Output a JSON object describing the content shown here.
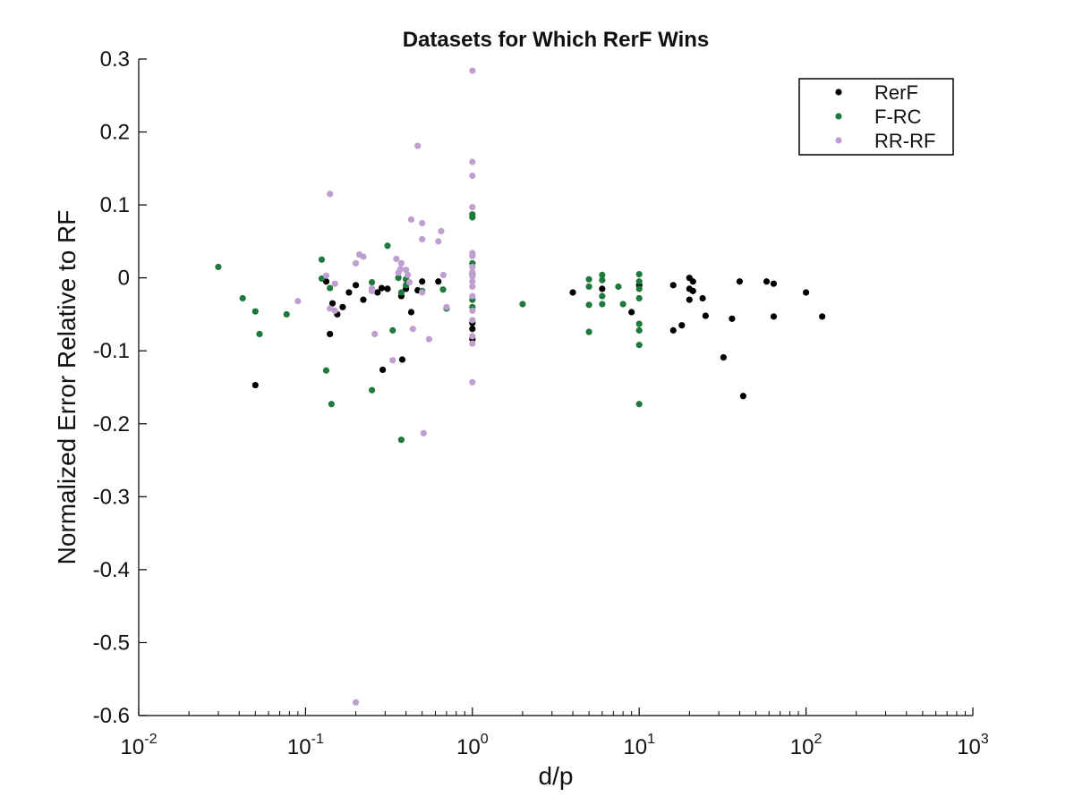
{
  "chart_data": {
    "type": "scatter",
    "title": "Datasets for Which RerF Wins",
    "xlabel": "d/p",
    "ylabel": "Normalized Error Relative to RF",
    "xscale": "log",
    "xlim": [
      0.01,
      1000
    ],
    "ylim": [
      -0.6,
      0.3
    ],
    "xticks": [
      {
        "value": 0.01,
        "base": "10",
        "exp": "-2"
      },
      {
        "value": 0.1,
        "base": "10",
        "exp": "-1"
      },
      {
        "value": 1,
        "base": "10",
        "exp": "0"
      },
      {
        "value": 10,
        "base": "10",
        "exp": "1"
      },
      {
        "value": 100,
        "base": "10",
        "exp": "2"
      },
      {
        "value": 1000,
        "base": "10",
        "exp": "3"
      }
    ],
    "yticks": [
      {
        "value": 0.3,
        "label": "0.3"
      },
      {
        "value": 0.2,
        "label": "0.2"
      },
      {
        "value": 0.1,
        "label": "0.1"
      },
      {
        "value": 0,
        "label": "0"
      },
      {
        "value": -0.1,
        "label": "-0.1"
      },
      {
        "value": -0.2,
        "label": "-0.2"
      },
      {
        "value": -0.3,
        "label": "-0.3"
      },
      {
        "value": -0.4,
        "label": "-0.4"
      },
      {
        "value": -0.5,
        "label": "-0.5"
      },
      {
        "value": -0.6,
        "label": "-0.6"
      }
    ],
    "grid": false,
    "legend_position": "top-right",
    "series": [
      {
        "name": "RerF",
        "color": "#000000",
        "points": [
          [
            0.05,
            -0.147
          ],
          [
            0.133,
            -0.005
          ],
          [
            0.14,
            -0.077
          ],
          [
            0.145,
            -0.035
          ],
          [
            0.155,
            -0.05
          ],
          [
            0.167,
            -0.04
          ],
          [
            0.182,
            -0.02
          ],
          [
            0.2,
            -0.01
          ],
          [
            0.222,
            -0.03
          ],
          [
            0.25,
            -0.015
          ],
          [
            0.27,
            -0.02
          ],
          [
            0.286,
            -0.014
          ],
          [
            0.29,
            -0.126
          ],
          [
            0.31,
            -0.015
          ],
          [
            0.375,
            -0.025
          ],
          [
            0.38,
            -0.112
          ],
          [
            0.4,
            -0.015
          ],
          [
            0.43,
            -0.047
          ],
          [
            0.47,
            -0.017
          ],
          [
            0.5,
            -0.005
          ],
          [
            0.625,
            -0.005
          ],
          [
            1,
            -0.062
          ],
          [
            1,
            -0.07
          ],
          [
            1,
            -0.084
          ],
          [
            4,
            -0.02
          ],
          [
            6,
            -0.015
          ],
          [
            9,
            -0.047
          ],
          [
            10,
            -0.01
          ],
          [
            16,
            -0.01
          ],
          [
            16,
            -0.072
          ],
          [
            18,
            -0.065
          ],
          [
            20,
            0
          ],
          [
            20,
            -0.015
          ],
          [
            20,
            -0.03
          ],
          [
            21,
            -0.005
          ],
          [
            21,
            -0.018
          ],
          [
            24,
            -0.028
          ],
          [
            25,
            -0.052
          ],
          [
            32,
            -0.109
          ],
          [
            36,
            -0.056
          ],
          [
            40,
            -0.005
          ],
          [
            42,
            -0.162
          ],
          [
            58,
            -0.005
          ],
          [
            64,
            -0.008
          ],
          [
            64,
            -0.053
          ],
          [
            100,
            -0.02
          ],
          [
            125,
            -0.053
          ]
        ]
      },
      {
        "name": "F-RC",
        "color": "#1e7a3c",
        "points": [
          [
            0.03,
            0.015
          ],
          [
            0.042,
            -0.028
          ],
          [
            0.05,
            -0.046
          ],
          [
            0.053,
            -0.077
          ],
          [
            0.077,
            -0.05
          ],
          [
            0.125,
            0.025
          ],
          [
            0.125,
            -0.001
          ],
          [
            0.133,
            -0.127
          ],
          [
            0.14,
            -0.014
          ],
          [
            0.143,
            -0.173
          ],
          [
            0.25,
            -0.006
          ],
          [
            0.25,
            -0.154
          ],
          [
            0.31,
            0.044
          ],
          [
            0.333,
            -0.072
          ],
          [
            0.36,
            0
          ],
          [
            0.375,
            -0.02
          ],
          [
            0.375,
            -0.222
          ],
          [
            0.4,
            -0.002
          ],
          [
            0.4,
            -0.01
          ],
          [
            0.5,
            -0.018
          ],
          [
            0.667,
            -0.016
          ],
          [
            0.7,
            -0.042
          ],
          [
            1,
            0.087
          ],
          [
            1,
            0.083
          ],
          [
            1,
            0.02
          ],
          [
            1,
            0.005
          ],
          [
            1,
            -0.03
          ],
          [
            1,
            -0.04
          ],
          [
            2,
            -0.036
          ],
          [
            5,
            -0.002
          ],
          [
            5,
            -0.012
          ],
          [
            5,
            -0.037
          ],
          [
            5,
            -0.074
          ],
          [
            6,
            0.004
          ],
          [
            6,
            -0.003
          ],
          [
            6,
            -0.025
          ],
          [
            6,
            -0.036
          ],
          [
            7.5,
            -0.012
          ],
          [
            8,
            -0.036
          ],
          [
            10,
            0.005
          ],
          [
            10,
            -0.005
          ],
          [
            10,
            -0.015
          ],
          [
            10,
            -0.028
          ],
          [
            10,
            -0.063
          ],
          [
            10,
            -0.072
          ],
          [
            10,
            -0.092
          ],
          [
            10,
            -0.173
          ]
        ]
      },
      {
        "name": "RR-RF",
        "color": "#bf9fd0",
        "points": [
          [
            0.09,
            -0.032
          ],
          [
            0.133,
            0.003
          ],
          [
            0.14,
            0.115
          ],
          [
            0.14,
            -0.042
          ],
          [
            0.15,
            -0.008
          ],
          [
            0.15,
            -0.045
          ],
          [
            0.2,
            0.02
          ],
          [
            0.2,
            -0.582
          ],
          [
            0.21,
            0.032
          ],
          [
            0.222,
            0.029
          ],
          [
            0.25,
            -0.015
          ],
          [
            0.25,
            -0.018
          ],
          [
            0.26,
            -0.077
          ],
          [
            0.333,
            -0.113
          ],
          [
            0.35,
            0.026
          ],
          [
            0.36,
            0.007
          ],
          [
            0.37,
            0.012
          ],
          [
            0.375,
            0.02
          ],
          [
            0.4,
            0.011
          ],
          [
            0.41,
            0.004
          ],
          [
            0.42,
            -0.006
          ],
          [
            0.43,
            0.08
          ],
          [
            0.44,
            -0.07
          ],
          [
            0.47,
            0.181
          ],
          [
            0.5,
            0.075
          ],
          [
            0.5,
            0.053
          ],
          [
            0.5,
            -0.02
          ],
          [
            0.51,
            -0.213
          ],
          [
            0.55,
            -0.084
          ],
          [
            0.625,
            0.05
          ],
          [
            0.65,
            0.064
          ],
          [
            0.67,
            0.004
          ],
          [
            0.7,
            -0.04
          ],
          [
            1,
            0.284
          ],
          [
            1,
            0.159
          ],
          [
            1,
            0.14
          ],
          [
            1,
            0.097
          ],
          [
            1,
            0.034
          ],
          [
            1,
            0.03
          ],
          [
            1,
            0.015
          ],
          [
            1,
            0.008
          ],
          [
            1,
            0.002
          ],
          [
            1,
            -0.005
          ],
          [
            1,
            -0.012
          ],
          [
            1,
            -0.025
          ],
          [
            1,
            -0.045
          ],
          [
            1,
            -0.058
          ],
          [
            1,
            -0.08
          ],
          [
            1,
            -0.09
          ],
          [
            1,
            -0.143
          ]
        ]
      }
    ]
  }
}
